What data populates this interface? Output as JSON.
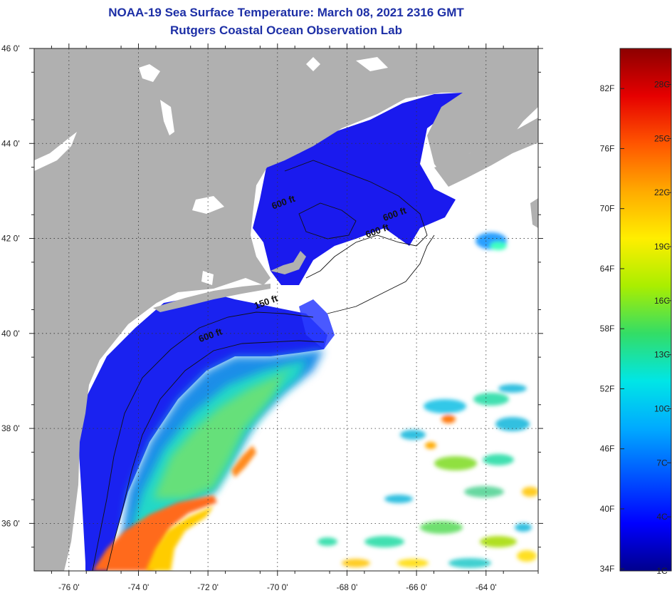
{
  "header": {
    "title": "NOAA-19 Sea Surface Temperature:  March 08, 2021 2316 GMT",
    "subtitle": "Rutgers Coastal Ocean Observation Lab"
  },
  "map": {
    "lon_range": [
      -77,
      -62.5
    ],
    "lat_range": [
      35,
      46
    ],
    "lon_ticks": [
      {
        "value": -76,
        "label": "-76 0'"
      },
      {
        "value": -74,
        "label": "-74 0'"
      },
      {
        "value": -72,
        "label": "-72 0'"
      },
      {
        "value": -70,
        "label": "-70 0'"
      },
      {
        "value": -68,
        "label": "-68 0'"
      },
      {
        "value": -66,
        "label": "-66 0'"
      },
      {
        "value": -64,
        "label": "-64 0'"
      }
    ],
    "lat_ticks": [
      {
        "value": 36,
        "label": "36 0'"
      },
      {
        "value": 38,
        "label": "38 0'"
      },
      {
        "value": 40,
        "label": "40 0'"
      },
      {
        "value": 42,
        "label": "42 0'"
      },
      {
        "value": 44,
        "label": "44 0'"
      },
      {
        "value": 46,
        "label": "46 0'"
      }
    ],
    "contour_labels": [
      {
        "text": "600 ft",
        "lon": -69.8,
        "lat": 42.7
      },
      {
        "text": "600 ft",
        "lon": -66.6,
        "lat": 42.45
      },
      {
        "text": "600 ft",
        "lon": -67.1,
        "lat": 42.1
      },
      {
        "text": "150 ft",
        "lon": -70.3,
        "lat": 40.6
      },
      {
        "text": "600 ft",
        "lon": -71.9,
        "lat": 39.9
      }
    ],
    "land_color": "#b0b0b0",
    "cloud_color": "#ffffff"
  },
  "colorbar": {
    "min_c": 1,
    "max_c": 30,
    "fahrenheit_labels": [
      "34F",
      "40F",
      "46F",
      "52F",
      "58F",
      "64F",
      "70F",
      "76F",
      "82F"
    ],
    "celsius_labels": [
      "1C",
      "4C",
      "7C",
      "10C",
      "13C",
      "16C",
      "19C",
      "22C",
      "25C",
      "28C"
    ],
    "colors": [
      "#00008c",
      "#0000ff",
      "#0055ff",
      "#00aaff",
      "#00e6e6",
      "#33dd66",
      "#aaee00",
      "#ffee00",
      "#ffaa00",
      "#ff5500",
      "#e60000",
      "#8c0000"
    ]
  }
}
